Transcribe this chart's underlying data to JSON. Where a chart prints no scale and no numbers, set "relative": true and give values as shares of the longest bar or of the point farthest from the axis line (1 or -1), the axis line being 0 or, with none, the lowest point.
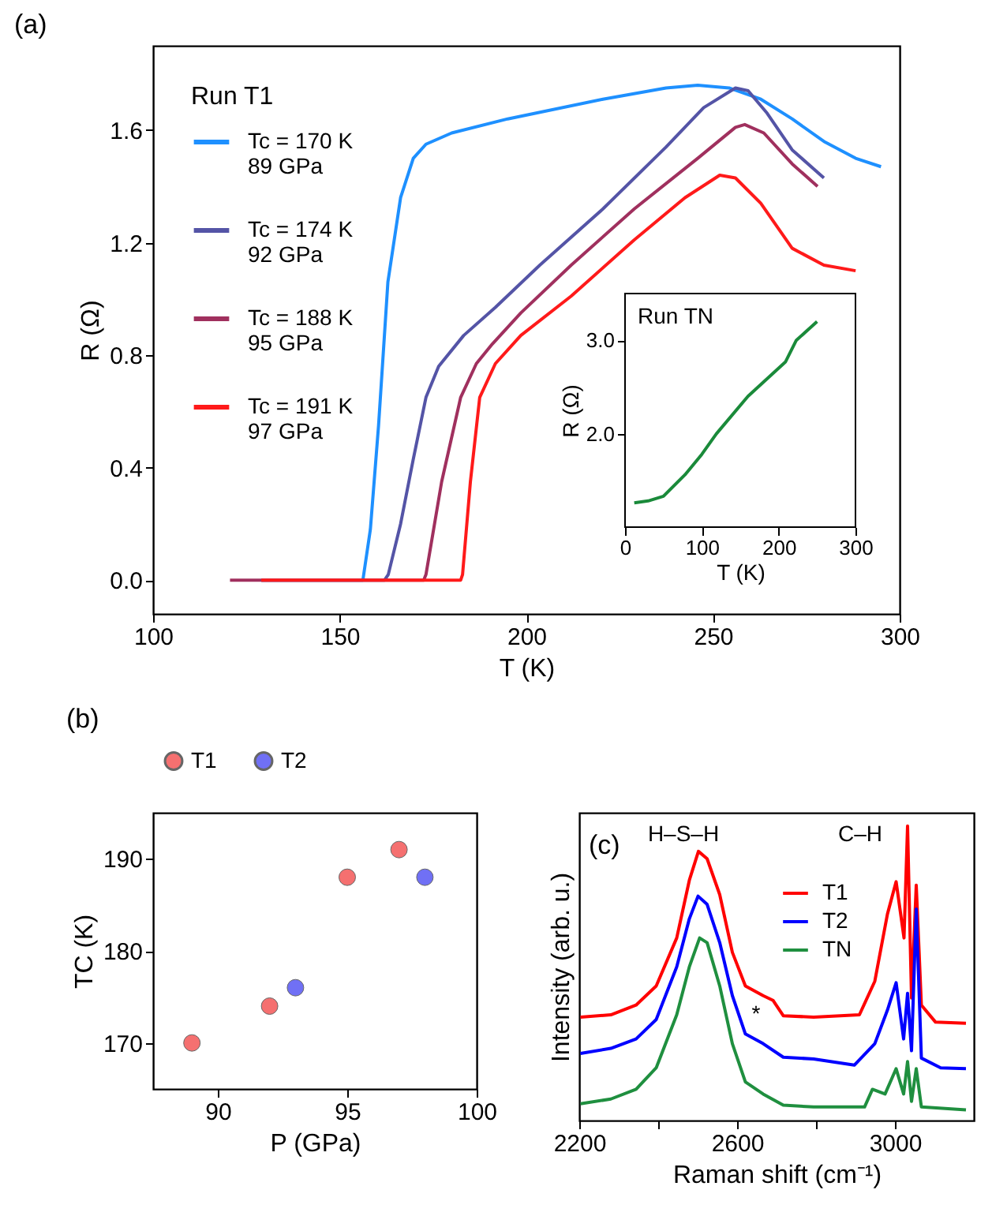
{
  "chart_data": [
    {
      "type": "line",
      "title": "(a)",
      "xlabel": "T (K)",
      "ylabel": "R (Ω)",
      "legend_title": "Run T1",
      "legend": "top left",
      "xlim": [
        100,
        300
      ],
      "xticks": [
        100,
        150,
        200,
        250,
        300
      ],
      "ylim": [
        -0.12,
        1.9
      ],
      "yticks": [
        {
          "value": 0,
          "label": "0.0"
        },
        0.4,
        0.8,
        1.2,
        1.6
      ],
      "series": [
        {
          "name": "Tc = 170 K\n89 GPa",
          "color": "#1e90ff",
          "x": [
            129,
            156.2,
            158.2,
            160.4,
            162.9,
            166.3,
            169.7,
            173.1,
            180,
            195,
            220.5,
            237.4,
            245.9,
            254.3,
            262.8,
            271.2,
            279.7,
            288.2,
            295
          ],
          "values": [
            0,
            0,
            0.18,
            0.55,
            1.06,
            1.36,
            1.5,
            1.55,
            1.59,
            1.64,
            1.71,
            1.75,
            1.76,
            1.75,
            1.71,
            1.64,
            1.56,
            1.5,
            1.47
          ]
        },
        {
          "name": "Tc = 174 K\n92 GPa",
          "color": "#5454a6",
          "x": [
            129,
            162,
            163,
            166.3,
            169.7,
            173.1,
            176.5,
            183.2,
            191.7,
            203.6,
            220.5,
            237.4,
            247.5,
            256,
            259.4,
            264.5,
            271.2,
            279.7
          ],
          "values": [
            0,
            0,
            0.02,
            0.2,
            0.43,
            0.65,
            0.76,
            0.87,
            0.97,
            1.12,
            1.32,
            1.54,
            1.68,
            1.75,
            1.74,
            1.66,
            1.53,
            1.43
          ]
        },
        {
          "name": "Tc = 188 K\n95 GPa",
          "color": "#a0305e",
          "x": [
            120.6,
            172.5,
            173.1,
            177.3,
            182.4,
            186.6,
            190.9,
            198.5,
            212,
            228.9,
            245.9,
            256,
            258.5,
            263.6,
            271.2,
            278
          ],
          "values": [
            0,
            0,
            0.02,
            0.35,
            0.65,
            0.77,
            0.84,
            0.95,
            1.12,
            1.32,
            1.5,
            1.61,
            1.62,
            1.59,
            1.48,
            1.4
          ]
        },
        {
          "name": "Tc = 191 K\n97 GPa",
          "color": "#ff1a1a",
          "x": [
            129,
            182.4,
            182.9,
            185,
            187.5,
            191.7,
            198.5,
            212,
            228.9,
            242.5,
            251.8,
            256,
            262.8,
            271.2,
            279.7,
            288.2
          ],
          "values": [
            0,
            0,
            0.02,
            0.35,
            0.65,
            0.77,
            0.87,
            1.01,
            1.21,
            1.36,
            1.44,
            1.43,
            1.34,
            1.18,
            1.12,
            1.1
          ]
        }
      ]
    },
    {
      "type": "line",
      "xlabel": "T (K)",
      "ylabel": "R (Ω)",
      "annotations": [
        "Run TN"
      ],
      "xlim": [
        0,
        300
      ],
      "xticks": [
        0,
        100,
        200,
        300
      ],
      "ylim": [
        1.0,
        3.5
      ],
      "yticks": [
        {
          "value": 2,
          "label": "2.0"
        },
        {
          "value": 3,
          "label": "3.0"
        }
      ],
      "series": [
        {
          "color": "#1a8a3a",
          "x": [
            12,
            30,
            50,
            78,
            100,
            119,
            160,
            209,
            223,
            250
          ],
          "values": [
            1.26,
            1.28,
            1.33,
            1.56,
            1.78,
            2.0,
            2.4,
            2.77,
            3.0,
            3.2
          ]
        }
      ]
    },
    {
      "type": "scatter",
      "title": "(b)",
      "xlabel": "P (GPa)",
      "ylabel": "TC (K)",
      "legend": "top",
      "marker": "circle",
      "xlim": [
        87.5,
        100
      ],
      "xticks": [
        90,
        95,
        100
      ],
      "ylim": [
        165,
        195
      ],
      "yticks": [
        170,
        180,
        190
      ],
      "series": [
        {
          "name": "T1",
          "color": "#f57070",
          "x": [
            89,
            92,
            95,
            97
          ],
          "values": [
            170,
            174,
            188,
            191
          ]
        },
        {
          "name": "T2",
          "color": "#7070f5",
          "x": [
            93,
            98
          ],
          "values": [
            176,
            188
          ]
        }
      ]
    },
    {
      "type": "line",
      "title": "(c)",
      "xlabel": "Raman shift (cm⁻¹)",
      "ylabel": "Intensity (arb. u.)",
      "relative": true,
      "tick_labels": "x",
      "legend": "top right",
      "xlim": [
        2200,
        3200
      ],
      "xticks": [
        2200,
        {
          "value": 2400,
          "label": null
        },
        2600,
        {
          "value": 2800,
          "label": null
        },
        3000
      ],
      "annotations": [
        "H–S–H",
        "C–H",
        "*"
      ],
      "series": [
        {
          "name": "T1",
          "color": "#ff0000",
          "x": [
            2203,
            2280,
            2344,
            2395,
            2447,
            2479,
            2502,
            2524,
            2556,
            2588,
            2621,
            2666,
            2691,
            2717,
            2794,
            2910,
            2949,
            2981,
            3003,
            3023,
            3032,
            3042,
            3054,
            3067,
            3103,
            3180
          ],
          "values": [
            0.351,
            0.359,
            0.392,
            0.457,
            0.62,
            0.816,
            0.914,
            0.889,
            0.767,
            0.571,
            0.457,
            0.424,
            0.408,
            0.356,
            0.351,
            0.359,
            0.473,
            0.701,
            0.811,
            0.62,
            1.0,
            0.416,
            0.799,
            0.392,
            0.334,
            0.33
          ]
        },
        {
          "name": "T2",
          "color": "#0000ff",
          "x": [
            2203,
            2280,
            2344,
            2395,
            2447,
            2479,
            2501,
            2524,
            2556,
            2588,
            2621,
            2666,
            2717,
            2794,
            2897,
            2949,
            2981,
            3003,
            3022,
            3032,
            3042,
            3054,
            3067,
            3116,
            3180
          ],
          "values": [
            0.228,
            0.245,
            0.277,
            0.343,
            0.522,
            0.685,
            0.762,
            0.734,
            0.604,
            0.424,
            0.294,
            0.261,
            0.215,
            0.209,
            0.188,
            0.261,
            0.375,
            0.468,
            0.277,
            0.432,
            0.237,
            0.718,
            0.212,
            0.179,
            0.176
          ]
        },
        {
          "name": "TN",
          "color": "#1f8f3f",
          "x": [
            2203,
            2280,
            2344,
            2395,
            2447,
            2479,
            2505,
            2524,
            2556,
            2588,
            2621,
            2666,
            2717,
            2794,
            2923,
            2943,
            2975,
            3003,
            3022,
            3032,
            3042,
            3054,
            3067,
            3180
          ],
          "values": [
            0.057,
            0.073,
            0.106,
            0.179,
            0.359,
            0.522,
            0.62,
            0.604,
            0.457,
            0.261,
            0.131,
            0.09,
            0.052,
            0.046,
            0.046,
            0.106,
            0.09,
            0.176,
            0.09,
            0.2,
            0.065,
            0.176,
            0.046,
            0.036
          ]
        }
      ]
    }
  ]
}
